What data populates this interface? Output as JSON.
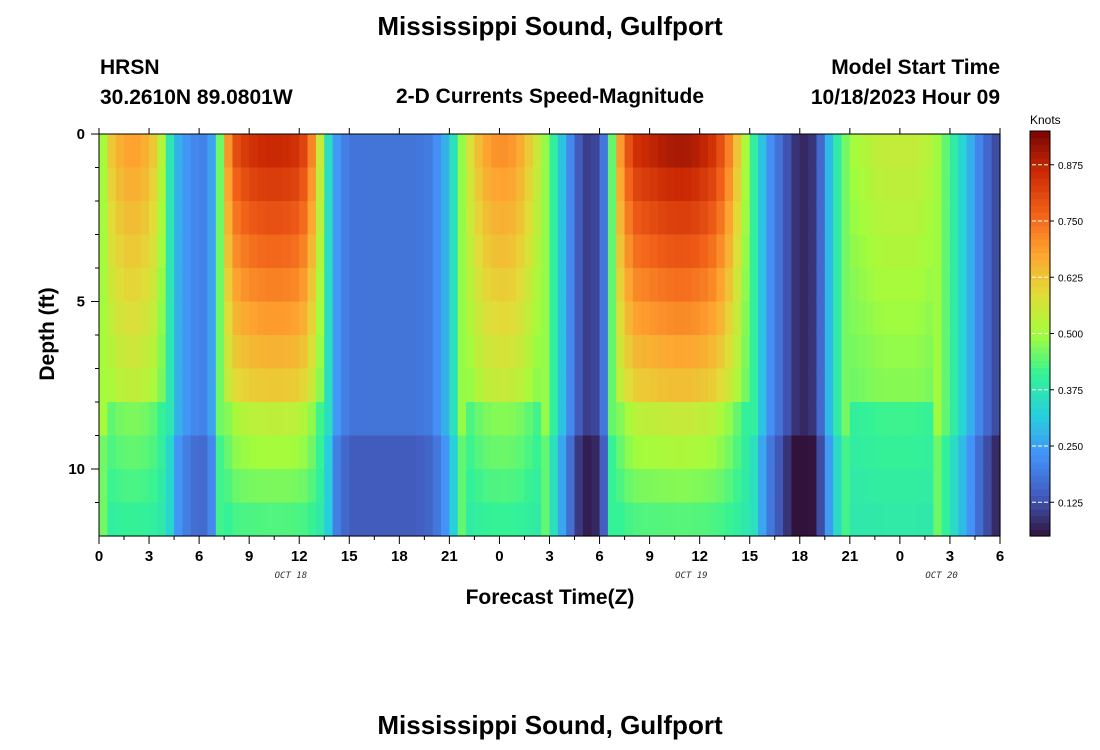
{
  "page": {
    "title": "Mississippi Sound, Gulfport",
    "bottom_title": "Mississippi Sound, Gulfport"
  },
  "header": {
    "station": "HRSN",
    "coords": "30.2610N  89.0801W",
    "subtitle": "2-D Currents Speed-Magnitude",
    "model_label": "Model Start Time",
    "model_time": "10/18/2023 Hour 09"
  },
  "chart_data": {
    "type": "heatmap",
    "title": "2-D Currents Speed-Magnitude",
    "xlabel": "Forecast Time(Z)",
    "ylabel": "Depth (ft)",
    "x_range_hours": [
      0,
      54
    ],
    "x_ticks": [
      "0",
      "3",
      "6",
      "9",
      "12",
      "15",
      "18",
      "21",
      "0",
      "3",
      "6",
      "9",
      "12",
      "15",
      "18",
      "21",
      "0",
      "3",
      "6"
    ],
    "date_labels": [
      {
        "label": "OCT 18",
        "hour": 11.5
      },
      {
        "label": "OCT 19",
        "hour": 35.5
      },
      {
        "label": "OCT 20",
        "hour": 50.5
      }
    ],
    "y_ticks": [
      "0",
      "5",
      "10"
    ],
    "ylim_ft": [
      0,
      12
    ],
    "y_inverted": true,
    "colorbar": {
      "units": "Knots",
      "labels": [
        "0.875",
        "0.750",
        "0.625",
        "0.500",
        "0.375",
        "0.250",
        "0.125"
      ],
      "values": [
        0.875,
        0.75,
        0.625,
        0.5,
        0.375,
        0.25,
        0.125
      ],
      "range": [
        0.05,
        0.95
      ],
      "colormap": "turbo"
    },
    "speed_profile_by_hour": [
      [
        0,
        0.4
      ],
      [
        0.5,
        0.6
      ],
      [
        1,
        0.66
      ],
      [
        2,
        0.7
      ],
      [
        3,
        0.66
      ],
      [
        3.5,
        0.6
      ],
      [
        4,
        0.45
      ],
      [
        4.5,
        0.3
      ],
      [
        5,
        0.25
      ],
      [
        6,
        0.2
      ],
      [
        6.5,
        0.21
      ],
      [
        7,
        0.3
      ],
      [
        7.5,
        0.62
      ],
      [
        8,
        0.8
      ],
      [
        9,
        0.86
      ],
      [
        10,
        0.88
      ],
      [
        11,
        0.88
      ],
      [
        12,
        0.86
      ],
      [
        12.5,
        0.8
      ],
      [
        13,
        0.66
      ],
      [
        13.5,
        0.45
      ],
      [
        14,
        0.26
      ],
      [
        15,
        0.18
      ],
      [
        17,
        0.18
      ],
      [
        19,
        0.18
      ],
      [
        20,
        0.2
      ],
      [
        21,
        0.3
      ],
      [
        22,
        0.55
      ],
      [
        23,
        0.68
      ],
      [
        24,
        0.72
      ],
      [
        25,
        0.7
      ],
      [
        26,
        0.6
      ],
      [
        27,
        0.45
      ],
      [
        28,
        0.25
      ],
      [
        29,
        0.1
      ],
      [
        30,
        0.12
      ],
      [
        30.5,
        0.25
      ],
      [
        31,
        0.65
      ],
      [
        32,
        0.86
      ],
      [
        34,
        0.91
      ],
      [
        35,
        0.92
      ],
      [
        36,
        0.9
      ],
      [
        37,
        0.85
      ],
      [
        38,
        0.7
      ],
      [
        39,
        0.45
      ],
      [
        40,
        0.25
      ],
      [
        41,
        0.15
      ],
      [
        42,
        0.07
      ],
      [
        43,
        0.1
      ],
      [
        44,
        0.35
      ],
      [
        45,
        0.5
      ],
      [
        47,
        0.55
      ],
      [
        49,
        0.55
      ],
      [
        50,
        0.52
      ],
      [
        51,
        0.42
      ],
      [
        52,
        0.3
      ],
      [
        53,
        0.18
      ],
      [
        54,
        0.1
      ]
    ]
  }
}
